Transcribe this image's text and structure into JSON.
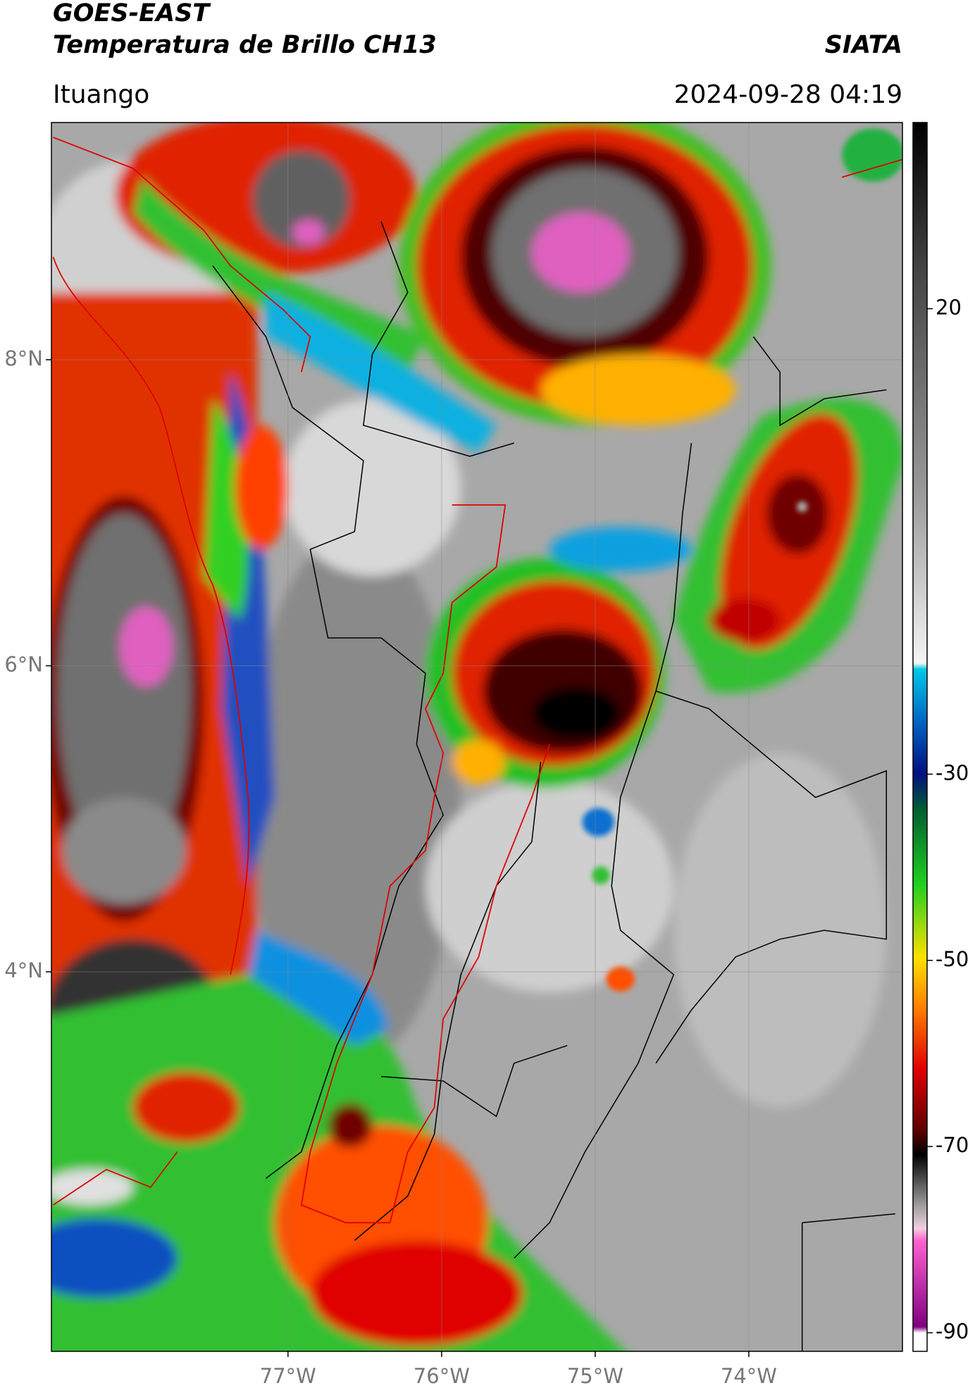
{
  "header": {
    "title": "GOES-EAST",
    "subtitle": "Temperatura de Brillo CH13",
    "source": "SIATA",
    "location": "Ituango",
    "datetime": "2024-09-28 04:19"
  },
  "map": {
    "xlim": [
      -78.54,
      -73.0
    ],
    "ylim": [
      1.52,
      9.55
    ],
    "xticks": [
      {
        "value": -77,
        "label": "77°W"
      },
      {
        "value": -76,
        "label": "76°W"
      },
      {
        "value": -75,
        "label": "75°W"
      },
      {
        "value": -74,
        "label": "74°W"
      }
    ],
    "yticks": [
      {
        "value": 8,
        "label": "8°N"
      },
      {
        "value": 6,
        "label": "6°N"
      },
      {
        "value": 4,
        "label": "4°N"
      }
    ]
  },
  "colorbar": {
    "clim": [
      -92,
      40
    ],
    "ticks": [
      20,
      -30,
      -50,
      -70,
      -90
    ]
  }
}
